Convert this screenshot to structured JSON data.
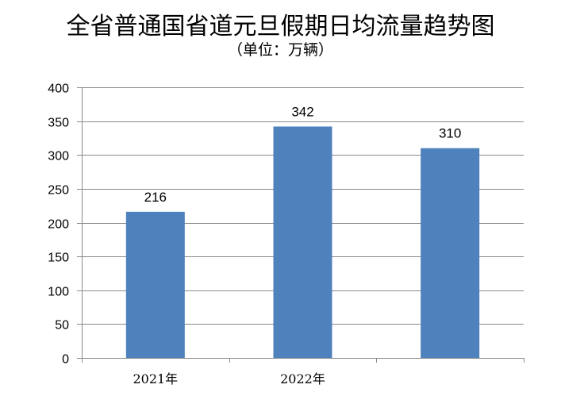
{
  "chart_data": {
    "type": "bar",
    "title": "全省普通国省道元旦假期日均流量趋势图",
    "subtitle": "（单位：万辆）",
    "categories": [
      "2021年",
      "2022年",
      ""
    ],
    "values": [
      216,
      342,
      310
    ],
    "data_labels": [
      "216",
      "342",
      "310"
    ],
    "ylim": [
      0,
      400
    ],
    "yticks": [
      0,
      50,
      100,
      150,
      200,
      250,
      300,
      350,
      400
    ],
    "grid": true,
    "legend": "none",
    "bar_color": "#4F81BD"
  }
}
